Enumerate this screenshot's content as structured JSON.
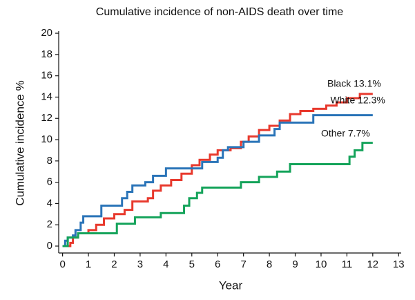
{
  "chart_data": {
    "type": "line",
    "step": true,
    "title": "Cumulative incidence of non-AIDS death over time",
    "xlabel": "Year",
    "ylabel": "Cumulative incidence %",
    "xlim": [
      -0.15,
      13.1
    ],
    "ylim": [
      -0.65,
      20.2
    ],
    "xticks": [
      0,
      1,
      2,
      3,
      4,
      5,
      6,
      7,
      8,
      9,
      10,
      11,
      12,
      13
    ],
    "yticks": [
      0,
      2,
      4,
      6,
      8,
      10,
      12,
      14,
      16,
      18,
      20
    ],
    "series": [
      {
        "name": "Black 13.1%",
        "color": "#e8392d",
        "x": [
          0,
          0.3,
          0.4,
          0.6,
          1.0,
          1.3,
          1.6,
          2.0,
          2.4,
          2.7,
          3.3,
          3.5,
          3.8,
          4.2,
          4.6,
          5.0,
          5.3,
          5.7,
          6.0,
          6.5,
          6.9,
          7.2,
          7.6,
          8.0,
          8.4,
          8.8,
          9.2,
          9.7,
          10.2,
          10.6,
          11.0,
          11.5,
          12.0
        ],
        "values": [
          0,
          0.3,
          0.8,
          1.2,
          1.5,
          2.0,
          2.6,
          3.0,
          3.4,
          4.2,
          4.5,
          5.2,
          5.7,
          6.2,
          6.8,
          7.6,
          8.1,
          8.6,
          9.0,
          9.2,
          9.8,
          10.3,
          10.9,
          11.3,
          11.8,
          12.4,
          12.7,
          12.9,
          13.2,
          13.5,
          13.9,
          14.3,
          14.3
        ]
      },
      {
        "name": "White 12.3%",
        "color": "#2a74b8",
        "x": [
          0,
          0.1,
          0.2,
          0.4,
          0.5,
          0.7,
          0.8,
          1.5,
          2.3,
          2.5,
          2.7,
          3.2,
          3.5,
          4.0,
          5.4,
          6.0,
          6.2,
          6.4,
          7.0,
          7.6,
          8.2,
          8.4,
          9.7,
          12.0
        ],
        "values": [
          0,
          0.5,
          0.8,
          1.0,
          1.5,
          2.2,
          2.8,
          3.8,
          4.5,
          5.1,
          5.7,
          6.0,
          6.6,
          7.3,
          7.9,
          8.3,
          9.0,
          9.3,
          9.8,
          10.4,
          11.0,
          11.6,
          12.3,
          12.3
        ]
      },
      {
        "name": "Other 7.7%",
        "color": "#14a35a",
        "x": [
          0,
          0.2,
          0.6,
          2.1,
          2.8,
          3.8,
          4.7,
          4.9,
          5.2,
          5.4,
          6.9,
          7.6,
          8.3,
          8.8,
          11.0,
          11.1,
          11.3,
          11.6,
          12.0
        ],
        "values": [
          0,
          0.8,
          1.2,
          2.1,
          2.7,
          3.1,
          3.8,
          4.5,
          5.0,
          5.5,
          6.0,
          6.5,
          7.0,
          7.7,
          7.7,
          8.4,
          9.0,
          9.7,
          9.7
        ]
      }
    ]
  }
}
